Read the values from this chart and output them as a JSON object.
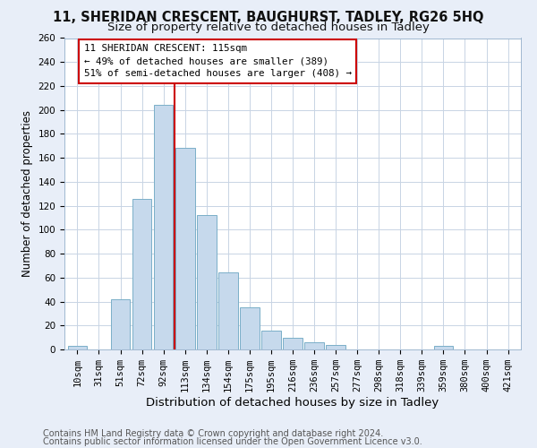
{
  "title1": "11, SHERIDAN CRESCENT, BAUGHURST, TADLEY, RG26 5HQ",
  "title2": "Size of property relative to detached houses in Tadley",
  "xlabel": "Distribution of detached houses by size in Tadley",
  "ylabel": "Number of detached properties",
  "categories": [
    "10sqm",
    "31sqm",
    "51sqm",
    "72sqm",
    "92sqm",
    "113sqm",
    "134sqm",
    "154sqm",
    "175sqm",
    "195sqm",
    "216sqm",
    "236sqm",
    "257sqm",
    "277sqm",
    "298sqm",
    "318sqm",
    "339sqm",
    "359sqm",
    "380sqm",
    "400sqm",
    "421sqm"
  ],
  "values": [
    3,
    0,
    42,
    126,
    204,
    168,
    112,
    64,
    35,
    16,
    10,
    6,
    4,
    0,
    0,
    0,
    0,
    3,
    0,
    0,
    0
  ],
  "bar_color": "#c6d9ec",
  "bar_edge_color": "#7aafc8",
  "vline_x": 4.5,
  "vline_color": "#cc0000",
  "annotation_title": "11 SHERIDAN CRESCENT: 115sqm",
  "annotation_line1": "← 49% of detached houses are smaller (389)",
  "annotation_line2": "51% of semi-detached houses are larger (408) →",
  "annotation_box_color": "#ffffff",
  "annotation_box_edge": "#cc0000",
  "ylim": [
    0,
    260
  ],
  "yticks": [
    0,
    20,
    40,
    60,
    80,
    100,
    120,
    140,
    160,
    180,
    200,
    220,
    240,
    260
  ],
  "footer1": "Contains HM Land Registry data © Crown copyright and database right 2024.",
  "footer2": "Contains public sector information licensed under the Open Government Licence v3.0.",
  "bg_color": "#e8eef8",
  "plot_bg_color": "#ffffff",
  "title1_fontsize": 10.5,
  "title2_fontsize": 9.5,
  "xlabel_fontsize": 9.5,
  "ylabel_fontsize": 8.5,
  "footer_fontsize": 7.0,
  "tick_fontsize": 7.5
}
